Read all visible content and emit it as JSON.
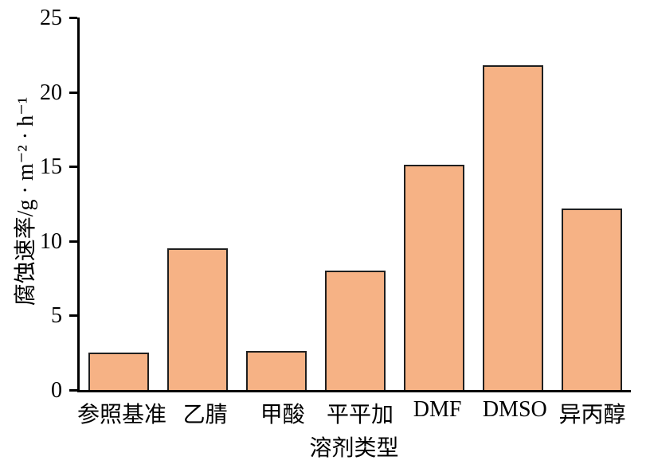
{
  "chart_data": {
    "type": "bar",
    "title": "",
    "categories": [
      "参照基准",
      "乙腈",
      "甲酸",
      "平平加",
      "DMF",
      "DMSO",
      "异丙醇"
    ],
    "values": [
      2.5,
      9.5,
      2.6,
      8.0,
      15.1,
      21.8,
      12.2
    ],
    "xlabel": "溶剂类型",
    "ylabel": "腐蚀速率/g · m⁻² · h⁻¹",
    "ylim": [
      0,
      25
    ],
    "yticks": [
      0,
      5,
      10,
      15,
      20,
      25
    ],
    "grid": false,
    "legend": null,
    "bar_color": "#F6B285",
    "bar_border_color": "#1f1f1f",
    "axis_color": "#000000"
  }
}
